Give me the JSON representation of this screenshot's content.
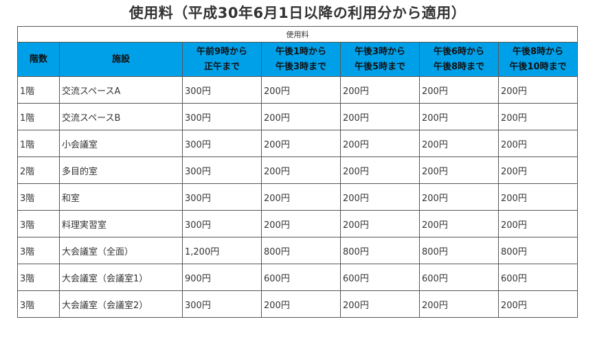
{
  "title": "使用料（平成30年6月1日以降の利用分から適用）",
  "table": {
    "caption": "使用料",
    "headers": [
      {
        "lines": [
          "階数"
        ]
      },
      {
        "lines": [
          "施設"
        ]
      },
      {
        "lines": [
          "午前9時から",
          "正午まで"
        ]
      },
      {
        "lines": [
          "午後1時から",
          "午後3時まで"
        ]
      },
      {
        "lines": [
          "午後3時から",
          "午後5時まで"
        ]
      },
      {
        "lines": [
          "午後6時から",
          "午後8時まで"
        ]
      },
      {
        "lines": [
          "午後8時から",
          "午後10時まで"
        ]
      }
    ],
    "rows": [
      [
        "1階",
        "交流スペースA",
        "300円",
        "200円",
        "200円",
        "200円",
        "200円"
      ],
      [
        "1階",
        "交流スペースB",
        "300円",
        "200円",
        "200円",
        "200円",
        "200円"
      ],
      [
        "1階",
        "小会議室",
        "300円",
        "200円",
        "200円",
        "200円",
        "200円"
      ],
      [
        "2階",
        "多目的室",
        "300円",
        "200円",
        "200円",
        "200円",
        "200円"
      ],
      [
        "3階",
        "和室",
        "300円",
        "200円",
        "200円",
        "200円",
        "200円"
      ],
      [
        "3階",
        "料理実習室",
        "300円",
        "200円",
        "200円",
        "200円",
        "200円"
      ],
      [
        "3階",
        "大会議室（全面）",
        "1,200円",
        "800円",
        "800円",
        "800円",
        "800円"
      ],
      [
        "3階",
        "大会議室（会議室1）",
        "900円",
        "600円",
        "600円",
        "600円",
        "600円"
      ],
      [
        "3階",
        "大会議室（会議室2）",
        "300円",
        "200円",
        "200円",
        "200円",
        "200円"
      ]
    ]
  },
  "colors": {
    "header_background": "#00a0e9",
    "border": "#555555",
    "text": "#333333"
  }
}
